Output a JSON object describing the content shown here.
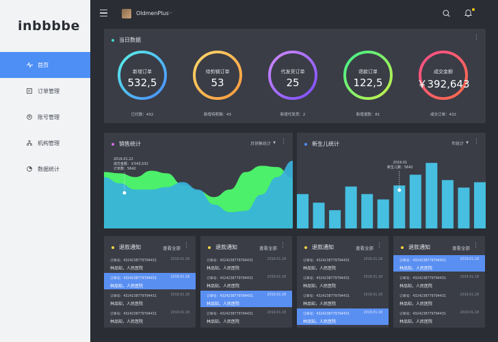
{
  "sidebar": {
    "logo": "inbbbbe",
    "items": [
      {
        "label": "首页",
        "icon": "pulse-icon",
        "active": true
      },
      {
        "label": "订单管理",
        "icon": "order-icon",
        "active": false
      },
      {
        "label": "账号管理",
        "icon": "account-icon",
        "active": false
      },
      {
        "label": "机构管理",
        "icon": "org-icon",
        "active": false
      },
      {
        "label": "数据统计",
        "icon": "stats-icon",
        "active": false
      }
    ]
  },
  "header": {
    "username": "OldmenPlus",
    "caret": "⌵"
  },
  "today": {
    "title": "当日数据",
    "rings": [
      {
        "label": "新增订单",
        "value": "532,5",
        "sub": "已付款：432",
        "c1": "#5af0e6",
        "c2": "#4a8cff"
      },
      {
        "label": "待剪辑订单",
        "value": "53",
        "sub": "新增待剪辑：43",
        "c1": "#ffd86b",
        "c2": "#ff9a3c"
      },
      {
        "label": "代发货订单",
        "value": "25",
        "sub": "新增代发货：2",
        "c1": "#d28cff",
        "c2": "#7a4dff"
      },
      {
        "label": "退款订单",
        "value": "122,5",
        "sub": "新增退款：81",
        "c1": "#3ff08a",
        "c2": "#c8f04a"
      },
      {
        "label": "成交金额",
        "value": "￥392,643",
        "sub": "成交订单：432",
        "c1": "#ff4f8a",
        "c2": "#ff6b4a"
      }
    ]
  },
  "sales": {
    "title": "销售统计",
    "period": "月销售统计",
    "tooltip": {
      "date": "2019.01.22",
      "amount": "成交金额：￥543,532",
      "orders": "订单数：5642"
    }
  },
  "births": {
    "title": "新生儿统计",
    "period": "年统计",
    "tooltip": {
      "date": "2019.01",
      "count": "新生儿数：5642"
    }
  },
  "chart_data": [
    {
      "type": "area",
      "title": "销售统计",
      "x": [
        0,
        1,
        2,
        3,
        4,
        5,
        6,
        7,
        8,
        9,
        10,
        11,
        12
      ],
      "series": [
        {
          "values": [
            45,
            44,
            41,
            46,
            44,
            35,
            30,
            25,
            31,
            45,
            50,
            49,
            40
          ]
        },
        {
          "values": [
            41,
            36,
            31,
            31,
            33,
            37,
            31,
            19,
            13,
            14,
            27,
            41,
            54
          ]
        }
      ],
      "ylim": [
        0,
        60
      ]
    },
    {
      "type": "bar",
      "title": "新生儿统计",
      "values": [
        32,
        24,
        17,
        39,
        32,
        27,
        40,
        50,
        61,
        45,
        38,
        43
      ],
      "ylim": [
        0,
        70
      ]
    }
  ],
  "notices": [
    {
      "title": "退款通知",
      "view_all": "查看全部",
      "highlight": 1,
      "rows": [
        {
          "order": "订单号：4324238779794431",
          "date": "2019.01.18",
          "name": "林品知，人民医院"
        },
        {
          "order": "订单号：4324238779794431",
          "date": "2019.01.18",
          "name": "林品知，人民医院"
        },
        {
          "order": "订单号：4324238779794431",
          "date": "2019.01.18",
          "name": "林品知，人民医院"
        },
        {
          "order": "订单号：4324238779794431",
          "date": "2019.01.18",
          "name": "林品知，人民医院"
        }
      ]
    },
    {
      "title": "退款通知",
      "view_all": "查看全部",
      "highlight": 2,
      "rows": [
        {
          "order": "订单号：4324238779794431",
          "date": "2019.01.18",
          "name": "林品知，人民医院"
        },
        {
          "order": "订单号：4324238779794431",
          "date": "2019.01.18",
          "name": "林品知，人民医院"
        },
        {
          "order": "订单号：4324238779794431",
          "date": "2019.01.18",
          "name": "林品知，人民医院"
        },
        {
          "order": "订单号：4324238779794431",
          "date": "2019.01.18",
          "name": "林品知，人民医院"
        }
      ]
    },
    {
      "title": "退款通知",
      "view_all": "查看全部",
      "highlight": 3,
      "rows": [
        {
          "order": "订单号：4324238779794431",
          "date": "2019.01.18",
          "name": "林品知，人民医院"
        },
        {
          "order": "订单号：4324238779794431",
          "date": "2019.01.18",
          "name": "林品知，人民医院"
        },
        {
          "order": "订单号：4324238779794431",
          "date": "2019.01.18",
          "name": "林品知，人民医院"
        },
        {
          "order": "订单号：4324238779794431",
          "date": "2019.01.18",
          "name": "林品知，人民医院"
        }
      ]
    },
    {
      "title": "退款通知",
      "view_all": "查看全部",
      "highlight": 0,
      "rows": [
        {
          "order": "订单号：4324238779794431",
          "date": "2019.01.18",
          "name": "林品知，人民医院"
        },
        {
          "order": "订单号：4324238779794431",
          "date": "2019.01.18",
          "name": "林品知，人民医院"
        },
        {
          "order": "订单号：4324238779794431",
          "date": "2019.01.18",
          "name": "林品知，人民医院"
        },
        {
          "order": "订单号：4324238779794431",
          "date": "2019.01.18",
          "name": "林品知，人民医院"
        }
      ]
    }
  ]
}
